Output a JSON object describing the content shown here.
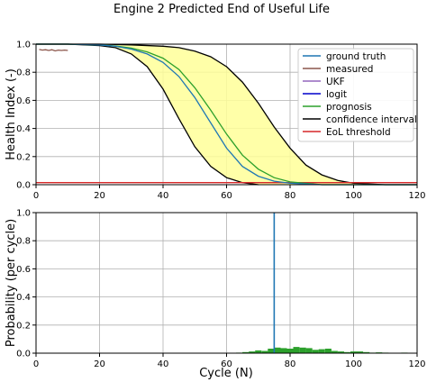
{
  "chart_data": [
    {
      "type": "line",
      "title": "Engine 2 Predicted End of Useful Life",
      "xlabel": "",
      "ylabel": "Health Index (-)",
      "xlim": [
        0,
        120
      ],
      "ylim": [
        0,
        1.0
      ],
      "xticks": [
        "0",
        "20",
        "40",
        "60",
        "80",
        "100",
        "120"
      ],
      "yticks": [
        "0.0",
        "0.2",
        "0.4",
        "0.6",
        "0.8",
        "1.0"
      ],
      "grid": true,
      "legend_placement": "top-right",
      "legend": [
        "ground truth",
        "measured",
        "UKF",
        "logit",
        "prognosis",
        "confidence interval",
        "EoL threshold"
      ],
      "series": [
        {
          "name": "ground truth",
          "color": "#1f77b4",
          "x": [
            0,
            10,
            20,
            25,
            30,
            35,
            40,
            45,
            50,
            55,
            60,
            65,
            70,
            75,
            80,
            90,
            100,
            120
          ],
          "values": [
            1.0,
            1.0,
            0.995,
            0.985,
            0.965,
            0.93,
            0.87,
            0.77,
            0.62,
            0.44,
            0.26,
            0.13,
            0.06,
            0.025,
            0.01,
            0.0,
            0.0,
            0.0
          ]
        },
        {
          "name": "measured",
          "color": "#8c564b",
          "x": [
            1,
            2,
            3,
            4,
            5,
            6,
            7,
            8,
            9,
            10
          ],
          "values": [
            0.962,
            0.958,
            0.96,
            0.955,
            0.96,
            0.952,
            0.958,
            0.955,
            0.958,
            0.955
          ]
        },
        {
          "name": "prognosis",
          "color": "#2ca02c",
          "x": [
            0,
            10,
            20,
            25,
            30,
            35,
            40,
            45,
            50,
            55,
            60,
            65,
            70,
            75,
            80,
            90,
            100,
            120
          ],
          "values": [
            1.0,
            1.0,
            0.995,
            0.987,
            0.972,
            0.945,
            0.9,
            0.82,
            0.69,
            0.53,
            0.36,
            0.21,
            0.11,
            0.05,
            0.02,
            0.0,
            0.0,
            0.0
          ]
        },
        {
          "name": "confidence interval",
          "color": "#000000",
          "x": [
            0,
            10,
            20,
            25,
            30,
            35,
            40,
            45,
            50,
            55,
            60,
            65,
            70
          ],
          "values": [
            1.0,
            1.0,
            0.99,
            0.975,
            0.93,
            0.84,
            0.68,
            0.47,
            0.27,
            0.13,
            0.05,
            0.015,
            0.0
          ]
        },
        {
          "name": "",
          "color": "#000000",
          "x": [
            0,
            10,
            20,
            30,
            40,
            45,
            50,
            55,
            60,
            65,
            70,
            75,
            80,
            85,
            90,
            95,
            100,
            110,
            120
          ],
          "values": [
            1.0,
            1.0,
            1.0,
            0.995,
            0.985,
            0.975,
            0.95,
            0.91,
            0.84,
            0.73,
            0.58,
            0.41,
            0.26,
            0.14,
            0.07,
            0.03,
            0.01,
            0.0,
            0.0
          ]
        },
        {
          "name": "EoL threshold",
          "color": "#d62728",
          "x": [
            0,
            120
          ],
          "values": [
            0.015,
            0.015
          ]
        }
      ]
    },
    {
      "type": "bar",
      "title": "",
      "xlabel": "Cycle (N)",
      "ylabel": "Probability (per cycle)",
      "xlim": [
        0,
        120
      ],
      "ylim": [
        0,
        1.0
      ],
      "xticks": [
        "0",
        "20",
        "40",
        "60",
        "80",
        "100",
        "120"
      ],
      "yticks": [
        "0.0",
        "0.2",
        "0.4",
        "0.6",
        "0.8",
        "1.0"
      ],
      "grid": true,
      "vline": {
        "x": 75,
        "color": "#1f77b4"
      },
      "bar_color": "#2ca02c",
      "bins": [
        {
          "x0": 63,
          "x1": 65,
          "value": 0.004
        },
        {
          "x0": 65,
          "x1": 67,
          "value": 0.008
        },
        {
          "x0": 67,
          "x1": 69,
          "value": 0.012
        },
        {
          "x0": 69,
          "x1": 71,
          "value": 0.02
        },
        {
          "x0": 71,
          "x1": 73,
          "value": 0.016
        },
        {
          "x0": 73,
          "x1": 75,
          "value": 0.032
        },
        {
          "x0": 75,
          "x1": 77,
          "value": 0.04
        },
        {
          "x0": 77,
          "x1": 79,
          "value": 0.036
        },
        {
          "x0": 79,
          "x1": 81,
          "value": 0.032
        },
        {
          "x0": 81,
          "x1": 83,
          "value": 0.044
        },
        {
          "x0": 83,
          "x1": 85,
          "value": 0.04
        },
        {
          "x0": 85,
          "x1": 87,
          "value": 0.036
        },
        {
          "x0": 87,
          "x1": 89,
          "value": 0.024
        },
        {
          "x0": 89,
          "x1": 91,
          "value": 0.028
        },
        {
          "x0": 91,
          "x1": 93,
          "value": 0.032
        },
        {
          "x0": 93,
          "x1": 95,
          "value": 0.016
        },
        {
          "x0": 95,
          "x1": 97,
          "value": 0.012
        },
        {
          "x0": 97,
          "x1": 99,
          "value": 0.008
        },
        {
          "x0": 99,
          "x1": 101,
          "value": 0.012
        },
        {
          "x0": 101,
          "x1": 103,
          "value": 0.012
        },
        {
          "x0": 103,
          "x1": 105,
          "value": 0.008
        },
        {
          "x0": 105,
          "x1": 107,
          "value": 0.004
        },
        {
          "x0": 107,
          "x1": 109,
          "value": 0.006
        },
        {
          "x0": 109,
          "x1": 111,
          "value": 0.004
        },
        {
          "x0": 113,
          "x1": 115,
          "value": 0.003
        },
        {
          "x0": 115,
          "x1": 117,
          "value": 0.004
        }
      ]
    }
  ]
}
